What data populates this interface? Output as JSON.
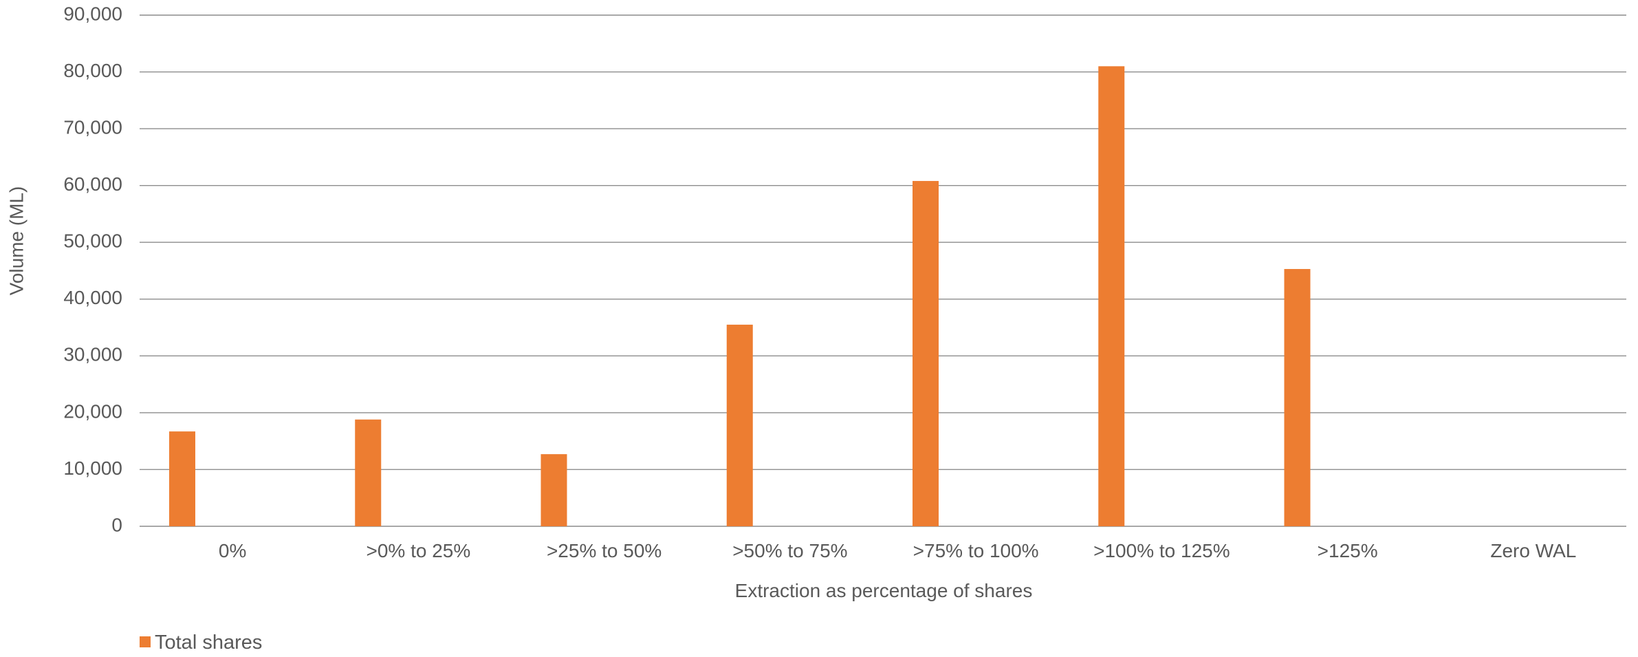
{
  "chart_data": {
    "type": "bar",
    "categories": [
      "0%",
      ">0% to 25%",
      ">25% to 50%",
      ">50% to 75%",
      ">75% to 100%",
      ">100% to 125%",
      ">125%",
      "Zero WAL"
    ],
    "series": [
      {
        "name": "Total shares",
        "color": "#ED7D31",
        "values": [
          16700,
          18800,
          12700,
          35500,
          60800,
          81000,
          45300,
          null
        ]
      }
    ],
    "title": "",
    "xlabel": "Extraction as percentage of shares",
    "ylabel": "Volume (ML)",
    "ylim": [
      0,
      90000
    ],
    "yticks": [
      "0",
      "10,000",
      "20,000",
      "30,000",
      "40,000",
      "50,000",
      "60,000",
      "70,000",
      "80,000",
      "90,000"
    ],
    "grid": true,
    "legend": "bottom-left"
  }
}
